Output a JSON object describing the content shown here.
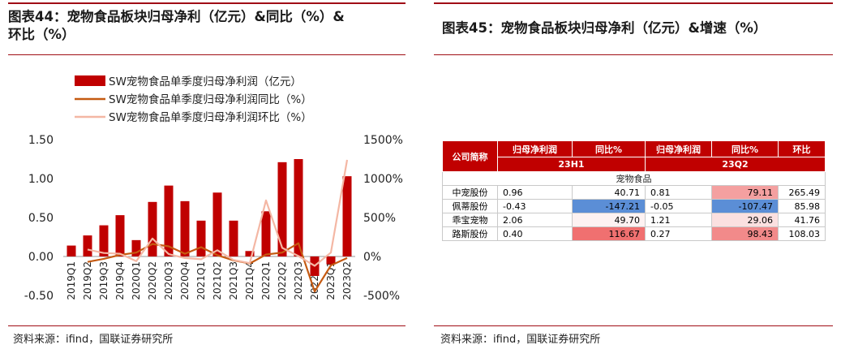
{
  "left": {
    "title_line1": "图表44：宠物食品板块归母净利（亿元）&同比（%）&",
    "title_line2": "环比（%）",
    "source": "资料来源：ifind，国联证券研究所"
  },
  "right": {
    "title": "图表45：宠物食品板块归母净利（亿元）&增速（%）",
    "source": "资料来源：ifind，国联证券研究所"
  },
  "chart_data": {
    "type": "bar",
    "categories": [
      "2019Q1",
      "2019Q2",
      "2019Q3",
      "2019Q4",
      "2020Q1",
      "2020Q2",
      "2020Q3",
      "2020Q4",
      "2021Q1",
      "2021Q2",
      "2021Q3",
      "2021Q4",
      "2022Q1",
      "2022Q2",
      "2022Q3",
      "2022Q4",
      "2023Q1",
      "2023Q2"
    ],
    "series": [
      {
        "name": "SW宠物食品单季度归母净利润（亿元）",
        "type": "bar",
        "axis": "left",
        "color": "#c00000",
        "values": [
          0.14,
          0.27,
          0.4,
          0.53,
          0.21,
          0.7,
          0.91,
          0.71,
          0.46,
          0.82,
          0.46,
          0.07,
          0.58,
          1.21,
          1.25,
          -0.25,
          -0.1,
          1.03
        ]
      },
      {
        "name": "SW宠物食品单季度归母净利润同比（%）",
        "type": "line",
        "axis": "right",
        "color": "#c55a11",
        "values": [
          null,
          -70,
          -30,
          20,
          50,
          160,
          130,
          35,
          120,
          17,
          -50,
          -90,
          25,
          50,
          170,
          -450,
          -115,
          -20
        ]
      },
      {
        "name": "SW宠物食品单季度归母净利润环比（%）",
        "type": "line",
        "axis": "right",
        "color": "#f4b7a4",
        "values": [
          null,
          90,
          45,
          35,
          -60,
          230,
          30,
          -20,
          -35,
          80,
          -45,
          -85,
          720,
          110,
          5,
          -120,
          50,
          1240
        ]
      }
    ],
    "ylim_left": [
      -0.5,
      1.5
    ],
    "yticks_left": [
      "-0.50",
      "0.00",
      "0.50",
      "1.00",
      "1.50"
    ],
    "ylim_right": [
      -500,
      1500
    ],
    "yticks_right": [
      "-500%",
      "0%",
      "500%",
      "1000%",
      "1500%"
    ],
    "legend_position": "top-left",
    "grid": false
  },
  "table": {
    "headers": [
      "公司简称",
      "归母净利润",
      "同比%",
      "归母净利润",
      "同比%",
      "环比"
    ],
    "periods": [
      "23H1",
      "23Q2"
    ],
    "section": "宠物食品",
    "rows": [
      {
        "name": "中宠股份",
        "cells": [
          "0.96",
          "40.71",
          "0.81",
          "79.11",
          "265.49"
        ]
      },
      {
        "name": "佩蒂股份",
        "cells": [
          "-0.43",
          "-147.21",
          "-0.05",
          "-107.47",
          "85.98"
        ]
      },
      {
        "name": "乖宝宠物",
        "cells": [
          "2.06",
          "49.70",
          "1.21",
          "29.06",
          "41.76"
        ]
      },
      {
        "name": "路斯股份",
        "cells": [
          "0.40",
          "116.67",
          "0.27",
          "98.43",
          "108.03"
        ]
      }
    ],
    "highlight_colors": {
      "r0c1": "#ffffff",
      "r1c1": "#5b8ed6",
      "r2c1": "#fdf2f2",
      "r3c1": "#f07070",
      "r0c3": "#f4a0a0",
      "r1c3": "#5b8ed6",
      "r2c3": "#fbe0e0",
      "r3c3": "#f28a8a"
    }
  }
}
